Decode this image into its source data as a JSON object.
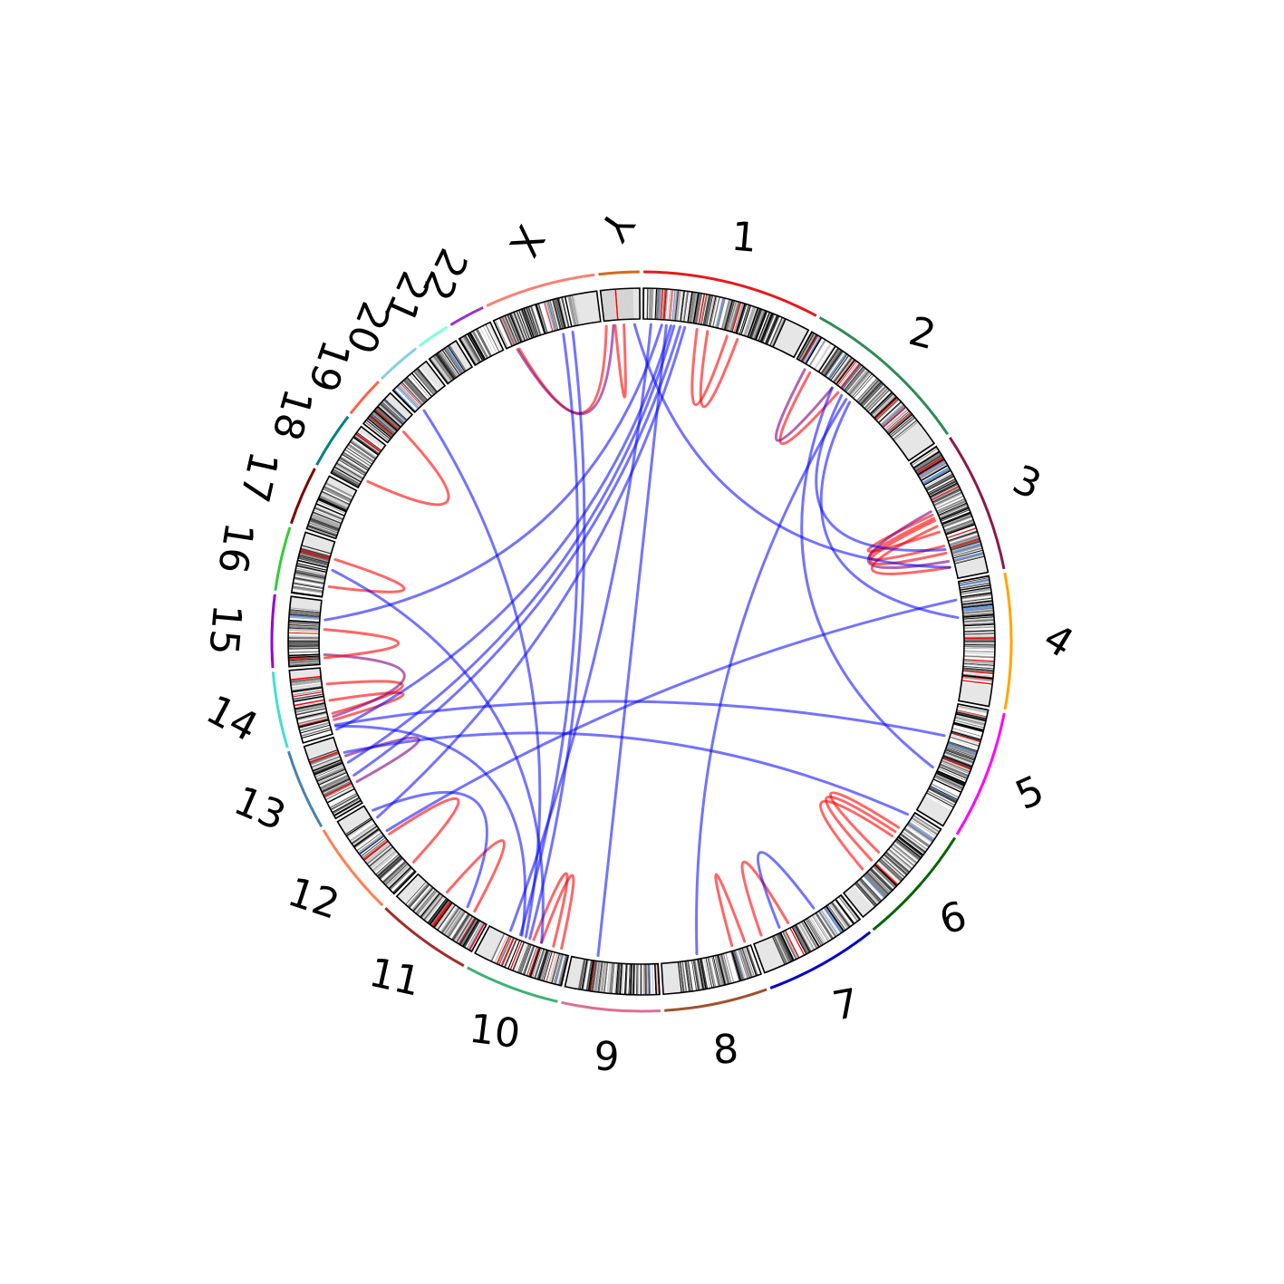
{
  "chart_data": {
    "type": "circos",
    "title": "",
    "chromosomes": [
      {
        "name": "1",
        "size": 249,
        "color": "#e41a1c"
      },
      {
        "name": "2",
        "size": 242,
        "color": "#2e8b57"
      },
      {
        "name": "3",
        "size": 198,
        "color": "#8b1a4a"
      },
      {
        "name": "4",
        "size": 190,
        "color": "#ffa500"
      },
      {
        "name": "5",
        "size": 181,
        "color": "#ff00ff"
      },
      {
        "name": "6",
        "size": 171,
        "color": "#006400"
      },
      {
        "name": "7",
        "size": 159,
        "color": "#0000cd"
      },
      {
        "name": "8",
        "size": 145,
        "color": "#a0522d"
      },
      {
        "name": "9",
        "size": 138,
        "color": "#db7093"
      },
      {
        "name": "10",
        "size": 134,
        "color": "#3cb371"
      },
      {
        "name": "11",
        "size": 135,
        "color": "#a52a2a"
      },
      {
        "name": "12",
        "size": 133,
        "color": "#ff7f50"
      },
      {
        "name": "13",
        "size": 114,
        "color": "#4682b4"
      },
      {
        "name": "14",
        "size": 107,
        "color": "#40e0d0"
      },
      {
        "name": "15",
        "size": 102,
        "color": "#9400d3"
      },
      {
        "name": "16",
        "size": 90,
        "color": "#32cd32"
      },
      {
        "name": "17",
        "size": 83,
        "color": "#800000"
      },
      {
        "name": "18",
        "size": 80,
        "color": "#008080"
      },
      {
        "name": "19",
        "size": 59,
        "color": "#ff6347"
      },
      {
        "name": "20",
        "size": 64,
        "color": "#87ceeb"
      },
      {
        "name": "21",
        "size": 47,
        "color": "#7fffd4"
      },
      {
        "name": "22",
        "size": 51,
        "color": "#9932cc"
      },
      {
        "name": "X",
        "size": 156,
        "color": "#fa8072"
      },
      {
        "name": "Y",
        "size": 57,
        "color": "#d2691e"
      }
    ],
    "links_legend_colors": {
      "red": "#ff0000",
      "blue": "#0000ff",
      "purple": "#800080"
    },
    "links": [
      {
        "a": [
          "1",
          0.35
        ],
        "b": [
          "1",
          0.55
        ],
        "color": "red"
      },
      {
        "a": [
          "1",
          0.42
        ],
        "b": [
          "1",
          0.62
        ],
        "color": "red"
      },
      {
        "a": [
          "Y",
          0.3
        ],
        "b": [
          "Y",
          0.55
        ],
        "color": "red"
      },
      {
        "a": [
          "X",
          0.12
        ],
        "b": [
          "Y",
          0.05
        ],
        "color": "red"
      },
      {
        "a": [
          "X",
          0.1
        ],
        "b": [
          "Y",
          0.25
        ],
        "color": "purple"
      },
      {
        "a": [
          "2",
          0.12
        ],
        "b": [
          "2",
          0.35
        ],
        "color": "red"
      },
      {
        "a": [
          "2",
          0.08
        ],
        "b": [
          "2",
          0.3
        ],
        "color": "purple"
      },
      {
        "a": [
          "3",
          0.45
        ],
        "b": [
          "3",
          0.6
        ],
        "color": "red"
      },
      {
        "a": [
          "3",
          0.48
        ],
        "b": [
          "3",
          0.72
        ],
        "color": "red"
      },
      {
        "a": [
          "3",
          0.5
        ],
        "b": [
          "3",
          0.78
        ],
        "color": "red"
      },
      {
        "a": [
          "3",
          0.42
        ],
        "b": [
          "3",
          0.85
        ],
        "color": "purple"
      },
      {
        "a": [
          "3",
          0.55
        ],
        "b": [
          "3",
          0.9
        ],
        "color": "red"
      },
      {
        "a": [
          "6",
          0.2
        ],
        "b": [
          "6",
          0.5
        ],
        "color": "red"
      },
      {
        "a": [
          "6",
          0.25
        ],
        "b": [
          "6",
          0.6
        ],
        "color": "red"
      },
      {
        "a": [
          "6",
          0.3
        ],
        "b": [
          "6",
          0.72
        ],
        "color": "red"
      },
      {
        "a": [
          "7",
          0.6
        ],
        "b": [
          "7",
          0.9
        ],
        "color": "red"
      },
      {
        "a": [
          "8",
          0.05
        ],
        "b": [
          "8",
          0.2
        ],
        "color": "red"
      },
      {
        "a": [
          "10",
          0.1
        ],
        "b": [
          "10",
          0.35
        ],
        "color": "red"
      },
      {
        "a": [
          "10",
          0.2
        ],
        "b": [
          "10",
          0.45
        ],
        "color": "red"
      },
      {
        "a": [
          "11",
          0.2
        ],
        "b": [
          "11",
          0.6
        ],
        "color": "red"
      },
      {
        "a": [
          "12",
          0.1
        ],
        "b": [
          "12",
          0.55
        ],
        "color": "red"
      },
      {
        "a": [
          "13",
          0.3
        ],
        "b": [
          "13",
          0.7
        ],
        "color": "purple"
      },
      {
        "a": [
          "14",
          0.2
        ],
        "b": [
          "14",
          0.5
        ],
        "color": "red"
      },
      {
        "a": [
          "14",
          0.3
        ],
        "b": [
          "14",
          0.75
        ],
        "color": "red"
      },
      {
        "a": [
          "14",
          0.25
        ],
        "b": [
          "15",
          0.15
        ],
        "color": "purple"
      },
      {
        "a": [
          "15",
          0.1
        ],
        "b": [
          "15",
          0.55
        ],
        "color": "red"
      },
      {
        "a": [
          "16",
          0.2
        ],
        "b": [
          "16",
          0.7
        ],
        "color": "red"
      },
      {
        "a": [
          "18",
          0.2
        ],
        "b": [
          "19",
          0.5
        ],
        "color": "red"
      },
      {
        "a": [
          "X",
          0.7
        ],
        "b": [
          "10",
          0.5
        ],
        "color": "blue"
      },
      {
        "a": [
          "X",
          0.6
        ],
        "b": [
          "10",
          0.62
        ],
        "color": "blue"
      },
      {
        "a": [
          "1",
          0.12
        ],
        "b": [
          "15",
          0.7
        ],
        "color": "blue"
      },
      {
        "a": [
          "1",
          0.18
        ],
        "b": [
          "14",
          0.05
        ],
        "color": "blue"
      },
      {
        "a": [
          "1",
          0.2
        ],
        "b": [
          "13",
          0.6
        ],
        "color": "blue"
      },
      {
        "a": [
          "1",
          0.24
        ],
        "b": [
          "13",
          0.4
        ],
        "color": "blue"
      },
      {
        "a": [
          "1",
          0.27
        ],
        "b": [
          "12",
          0.8
        ],
        "color": "blue"
      },
      {
        "a": [
          "1",
          0.15
        ],
        "b": [
          "9",
          0.7
        ],
        "color": "blue"
      },
      {
        "a": [
          "Y",
          0.85
        ],
        "b": [
          "3",
          0.9
        ],
        "color": "blue"
      },
      {
        "a": [
          "2",
          0.38
        ],
        "b": [
          "3",
          0.75
        ],
        "color": "blue"
      },
      {
        "a": [
          "2",
          0.45
        ],
        "b": [
          "4",
          0.3
        ],
        "color": "blue"
      },
      {
        "a": [
          "2",
          0.3
        ],
        "b": [
          "5",
          0.6
        ],
        "color": "blue"
      },
      {
        "a": [
          "2",
          0.42
        ],
        "b": [
          "8",
          0.6
        ],
        "color": "blue"
      },
      {
        "a": [
          "4",
          0.15
        ],
        "b": [
          "12",
          0.6
        ],
        "color": "blue"
      },
      {
        "a": [
          "5",
          0.3
        ],
        "b": [
          "14",
          0.12
        ],
        "color": "blue"
      },
      {
        "a": [
          "6",
          0.05
        ],
        "b": [
          "13",
          0.75
        ],
        "color": "blue"
      },
      {
        "a": [
          "7",
          0.3
        ],
        "b": [
          "7",
          0.7
        ],
        "color": "blue"
      },
      {
        "a": [
          "16",
          0.5
        ],
        "b": [
          "10",
          0.35
        ],
        "color": "blue"
      },
      {
        "a": [
          "20",
          0.2
        ],
        "b": [
          "10",
          0.55
        ],
        "color": "blue"
      },
      {
        "a": [
          "14",
          0.1
        ],
        "b": [
          "10",
          0.6
        ],
        "color": "blue"
      },
      {
        "a": [
          "1",
          0.05
        ],
        "b": [
          "10",
          0.75
        ],
        "color": "blue"
      },
      {
        "a": [
          "12",
          0.9
        ],
        "b": [
          "11",
          0.3
        ],
        "color": "blue"
      }
    ]
  }
}
